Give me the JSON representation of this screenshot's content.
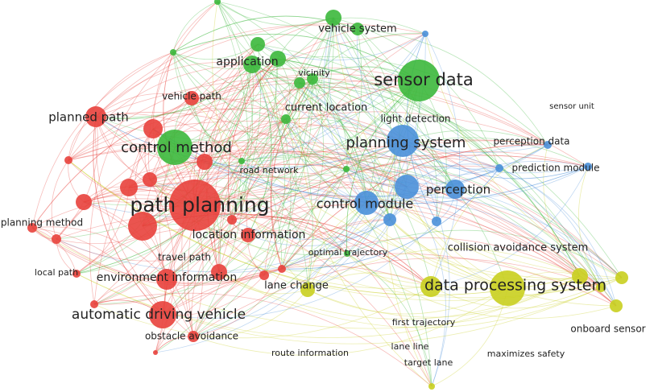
{
  "nodes": [
    {
      "label": "vehicle system"
    },
    {
      "label": "sensor data"
    },
    {
      "label": "application"
    },
    {
      "label": "vicinity"
    },
    {
      "label": "vehicle path"
    },
    {
      "label": "planned path"
    },
    {
      "label": "current location"
    },
    {
      "label": "light detection"
    },
    {
      "label": "sensor unit"
    },
    {
      "label": "control method"
    },
    {
      "label": "planning system"
    },
    {
      "label": "perception data"
    },
    {
      "label": "road network"
    },
    {
      "label": "prediction module"
    },
    {
      "label": "perception"
    },
    {
      "label": "path planning"
    },
    {
      "label": "control module"
    },
    {
      "label": "planning method"
    },
    {
      "label": "location information"
    },
    {
      "label": "collision avoidance system"
    },
    {
      "label": "optimal trajectory"
    },
    {
      "label": "travel path"
    },
    {
      "label": "local path"
    },
    {
      "label": "environment information"
    },
    {
      "label": "lane change"
    },
    {
      "label": "data processing system"
    },
    {
      "label": "automatic driving vehicle"
    },
    {
      "label": "first trajectory"
    },
    {
      "label": "onboard sensor"
    },
    {
      "label": "obstacle avoidance"
    },
    {
      "label": "route information"
    },
    {
      "label": "lane line"
    },
    {
      "label": "maximizes safety"
    },
    {
      "label": "target lane"
    }
  ]
}
